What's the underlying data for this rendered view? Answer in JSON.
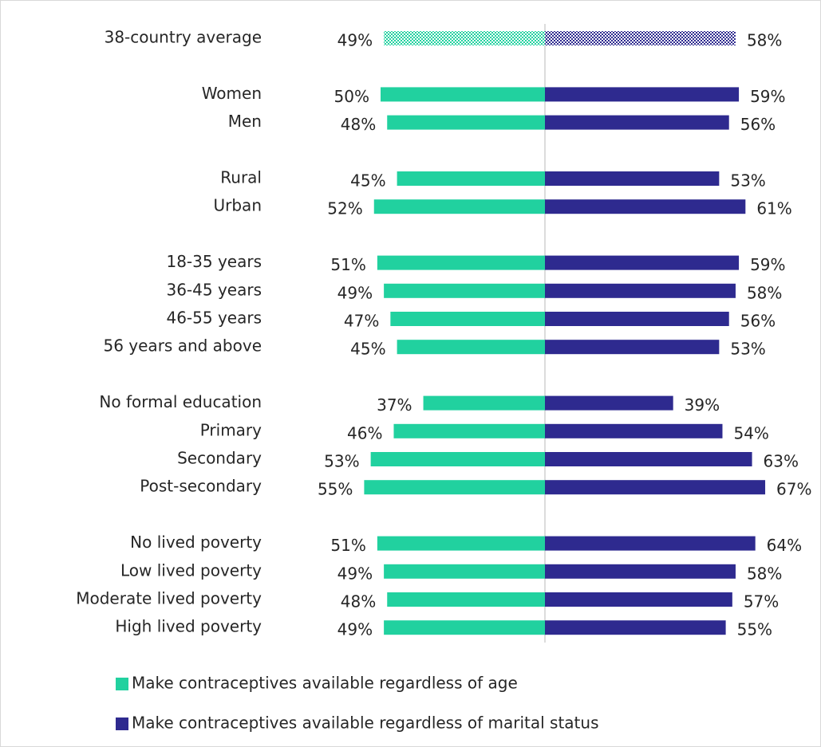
{
  "chart_data": {
    "type": "diverging_bar",
    "categories": [
      "38-country average",
      null,
      "Women",
      "Men",
      null,
      "Rural",
      "Urban",
      null,
      "18-35 years",
      "36-45 years",
      "46-55 years",
      "56 years and above",
      null,
      "No formal education",
      "Primary",
      "Secondary",
      "Post-secondary",
      null,
      "No lived poverty",
      "Low lived poverty",
      "Moderate lived poverty",
      "High lived poverty"
    ],
    "series": [
      {
        "name": "Make contraceptives available regardless of age",
        "color": "#21d19f",
        "values": [
          49,
          null,
          50,
          48,
          null,
          45,
          52,
          null,
          51,
          49,
          47,
          45,
          null,
          37,
          46,
          53,
          55,
          null,
          51,
          49,
          48,
          49
        ],
        "value_labels": [
          "49%",
          null,
          "50%",
          "48%",
          null,
          "45%",
          "52%",
          null,
          "51%",
          "49%",
          "47%",
          "45%",
          null,
          "37%",
          "46%",
          "53%",
          "55%",
          null,
          "51%",
          "49%",
          "48%",
          "49%"
        ]
      },
      {
        "name": "Make contraceptives available regardless of marital status",
        "color": "#2e2a8f",
        "values": [
          58,
          null,
          59,
          56,
          null,
          53,
          61,
          null,
          59,
          58,
          56,
          53,
          null,
          39,
          54,
          63,
          67,
          null,
          64,
          58,
          57,
          55
        ],
        "value_labels": [
          "58%",
          null,
          "59%",
          "56%",
          null,
          "53%",
          "61%",
          null,
          "59%",
          "58%",
          "56%",
          "53%",
          null,
          "39%",
          "54%",
          "63%",
          "67%",
          null,
          "64%",
          "58%",
          "57%",
          "55%"
        ]
      }
    ]
  }
}
